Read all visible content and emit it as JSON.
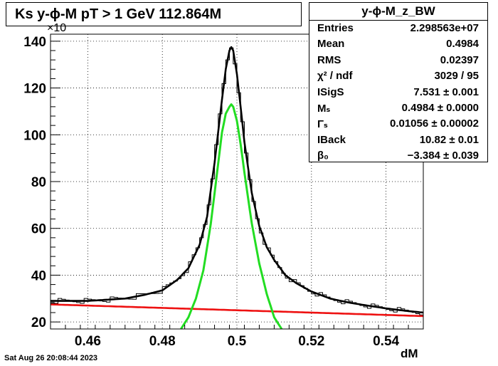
{
  "title": "Ks y-ϕ-M pT > 1 GeV  112.864M",
  "exponent_label": "×10",
  "xaxis_title": "dM",
  "date": "Sat Aug 26 20:08:44 2023",
  "stats": {
    "title": "y-ϕ-M_z_BW",
    "rows": [
      {
        "label": "Entries",
        "value": "2.298563e+07"
      },
      {
        "label": "Mean",
        "value": "0.4984"
      },
      {
        "label": "RMS",
        "value": "0.02397"
      },
      {
        "label": "χ² / ndf",
        "value": "3029 / 95"
      },
      {
        "label": "ISigS",
        "value": "7.531 ± 0.001"
      },
      {
        "label": "Mₛ",
        "value": "0.4984 ± 0.0000"
      },
      {
        "label": "Γₛ",
        "value": "0.01056 ± 0.00002"
      },
      {
        "label": "IBack",
        "value": "10.82 ± 0.01"
      },
      {
        "label": "β₀",
        "value": "−3.384 ± 0.039"
      }
    ]
  },
  "chart_data": {
    "type": "line",
    "xlim": [
      0.45,
      0.55
    ],
    "ylim": [
      17,
      143
    ],
    "xticks": [
      0.46,
      0.48,
      0.5,
      0.52,
      0.54
    ],
    "xtick_labels": [
      "0.46",
      "0.48",
      "0.5",
      "0.52",
      "0.54"
    ],
    "yticks": [
      20,
      40,
      60,
      80,
      100,
      120,
      140
    ],
    "ytick_labels": [
      "20",
      "40",
      "60",
      "80",
      "100",
      "120",
      "140"
    ],
    "grid": true,
    "colors": {
      "data": "#000000",
      "total_fit": "#000000",
      "signal": "#22dd22",
      "background": "#ee1111"
    },
    "series": [
      {
        "role": "total_fit",
        "x": [
          0.45,
          0.46,
          0.47,
          0.475,
          0.48,
          0.484,
          0.487,
          0.49,
          0.492,
          0.494,
          0.496,
          0.497,
          0.498,
          0.4985,
          0.499,
          0.5,
          0.501,
          0.502,
          0.504,
          0.506,
          0.508,
          0.51,
          0.513,
          0.516,
          0.52,
          0.525,
          0.53,
          0.535,
          0.54,
          0.545,
          0.55
        ],
        "y": [
          29,
          29,
          30,
          31.5,
          33.5,
          38,
          43,
          53,
          65,
          88,
          115,
          128,
          136,
          137.5,
          136,
          126,
          112,
          97,
          75,
          61,
          52,
          46.5,
          40,
          36.5,
          33,
          30,
          28.3,
          27,
          25.8,
          24.8,
          24
        ]
      },
      {
        "role": "signal",
        "x": [
          0.485,
          0.487,
          0.489,
          0.491,
          0.493,
          0.495,
          0.496,
          0.497,
          0.498,
          0.4985,
          0.499,
          0.5,
          0.501,
          0.502,
          0.504,
          0.506,
          0.508,
          0.51,
          0.512
        ],
        "y": [
          17,
          22,
          30,
          42,
          62,
          88,
          101,
          109,
          112,
          113,
          112,
          106,
          96,
          84,
          62,
          45,
          32,
          22,
          17
        ]
      },
      {
        "role": "background",
        "x": [
          0.45,
          0.47,
          0.49,
          0.51,
          0.53,
          0.55
        ],
        "y": [
          27.5,
          26.5,
          25.5,
          24.5,
          23.5,
          22.5
        ]
      }
    ]
  }
}
